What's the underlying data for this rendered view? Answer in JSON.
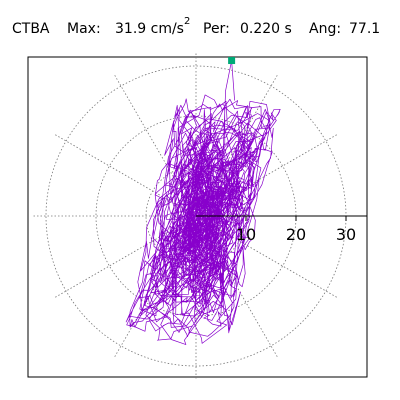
{
  "chart_data": {
    "type": "polar-orbit",
    "station": "CTBA",
    "max_label": "Max:",
    "max_value": "31.9 cm/s",
    "max_exponent": "2",
    "period_label": "Per:",
    "period_value": "0.220 s",
    "angle_label": "Ang:",
    "angle_value": "77.1",
    "rlim": [
      0,
      35
    ],
    "r_ticks": [
      10,
      20,
      30
    ],
    "r_tick_labels": [
      "10",
      "20",
      "30"
    ],
    "angular_spokes_deg": [
      0,
      30,
      60,
      90,
      120,
      150,
      180,
      210,
      240,
      270,
      300,
      330
    ],
    "grid": true,
    "peak_marker": {
      "r": 31.9,
      "angle_deg": 77.1
    },
    "trace_envelope": {
      "center": [
        0,
        0
      ],
      "semi_axis_major": 26,
      "semi_axis_minor": 11,
      "major_axis_angle_deg": 77.1
    },
    "colors": {
      "trace": "#8800cc",
      "peak_marker": "#00aa77",
      "grid": "#777777",
      "axis": "#000000"
    }
  }
}
